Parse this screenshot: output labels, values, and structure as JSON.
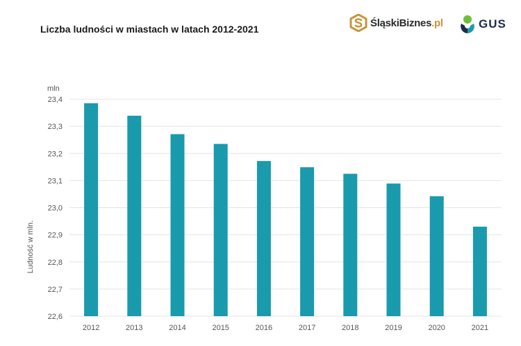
{
  "header": {
    "title": "Liczba ludności w miastach w latach 2012-2021"
  },
  "logos": {
    "slaski_name": "ŚląskiBiznes",
    "slaski_suffix": ".pl",
    "gus_name": "GUS"
  },
  "colors": {
    "bar": "#1a9aad",
    "grid": "#e4e4e4",
    "slaski_gold": "#c8943c",
    "gus_navy": "#1d2b4a",
    "gus_green": "#6fbf3f",
    "gus_teal": "#1a9aad"
  },
  "chart_data": {
    "type": "bar",
    "title": "Liczba ludności w miastach w latach 2012-2021",
    "xlabel": "",
    "ylabel": "Ludność w mln.",
    "unit_label": "mln",
    "categories": [
      "2012",
      "2013",
      "2014",
      "2015",
      "2016",
      "2017",
      "2018",
      "2019",
      "2020",
      "2021"
    ],
    "values": [
      23.385,
      23.339,
      23.271,
      23.235,
      23.172,
      23.149,
      23.125,
      23.089,
      23.042,
      22.93
    ],
    "ylim": [
      22.6,
      23.4
    ],
    "yticks": [
      22.6,
      22.7,
      22.8,
      22.9,
      23.0,
      23.1,
      23.2,
      23.3,
      23.4
    ],
    "ytick_labels": [
      "22,6",
      "22,7",
      "22,8",
      "22,9",
      "23,0",
      "23,1",
      "23,2",
      "23,3",
      "23,4"
    ],
    "grid": true,
    "legend": "none"
  }
}
